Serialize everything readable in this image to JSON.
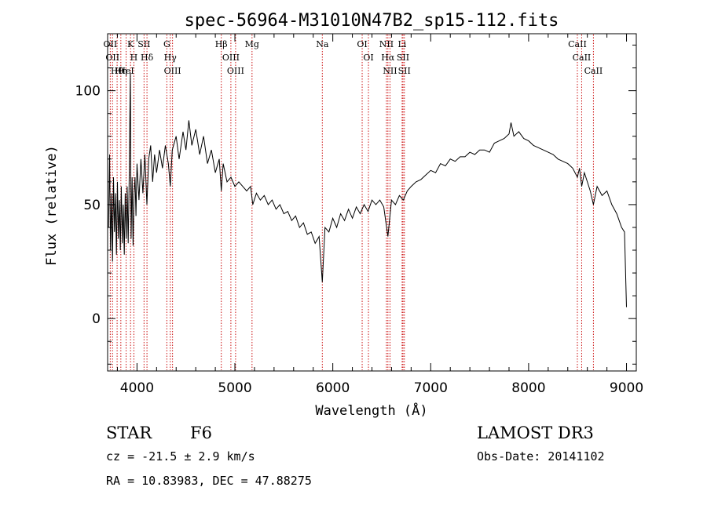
{
  "chart_data": {
    "type": "line",
    "title": "spec-56964-M31010N47B2_sp15-112.fits",
    "xlabel": "Wavelength (Å)",
    "ylabel": "Flux (relative)",
    "xlim": [
      3700,
      9100
    ],
    "ylim": [
      -23,
      125
    ],
    "x_ticks": [
      4000,
      5000,
      6000,
      7000,
      8000,
      9000
    ],
    "x_tick_labels": [
      "4000",
      "5000",
      "6000",
      "7000",
      "8000",
      "9000"
    ],
    "y_ticks": [
      0,
      50,
      100
    ],
    "y_tick_labels": [
      "0",
      "50",
      "100"
    ],
    "series": [
      {
        "name": "flux",
        "points": [
          [
            3710,
            40
          ],
          [
            3720,
            72
          ],
          [
            3730,
            30
          ],
          [
            3740,
            55
          ],
          [
            3750,
            25
          ],
          [
            3760,
            62
          ],
          [
            3770,
            38
          ],
          [
            3780,
            55
          ],
          [
            3790,
            28
          ],
          [
            3800,
            60
          ],
          [
            3810,
            35
          ],
          [
            3820,
            52
          ],
          [
            3830,
            30
          ],
          [
            3840,
            58
          ],
          [
            3850,
            33
          ],
          [
            3860,
            50
          ],
          [
            3870,
            28
          ],
          [
            3880,
            55
          ],
          [
            3890,
            35
          ],
          [
            3900,
            58
          ],
          [
            3910,
            33
          ],
          [
            3920,
            60
          ],
          [
            3932,
            108
          ],
          [
            3940,
            35
          ],
          [
            3950,
            62
          ],
          [
            3960,
            32
          ],
          [
            3970,
            55
          ],
          [
            3980,
            62
          ],
          [
            3990,
            45
          ],
          [
            4000,
            68
          ],
          [
            4020,
            52
          ],
          [
            4040,
            70
          ],
          [
            4060,
            55
          ],
          [
            4080,
            72
          ],
          [
            4101,
            50
          ],
          [
            4120,
            70
          ],
          [
            4140,
            76
          ],
          [
            4160,
            60
          ],
          [
            4180,
            72
          ],
          [
            4200,
            64
          ],
          [
            4230,
            74
          ],
          [
            4260,
            66
          ],
          [
            4290,
            76
          ],
          [
            4320,
            68
          ],
          [
            4340,
            58
          ],
          [
            4360,
            74
          ],
          [
            4400,
            80
          ],
          [
            4430,
            70
          ],
          [
            4470,
            82
          ],
          [
            4500,
            74
          ],
          [
            4530,
            87
          ],
          [
            4560,
            76
          ],
          [
            4600,
            83
          ],
          [
            4640,
            72
          ],
          [
            4680,
            80
          ],
          [
            4720,
            68
          ],
          [
            4760,
            74
          ],
          [
            4800,
            64
          ],
          [
            4840,
            70
          ],
          [
            4861,
            56
          ],
          [
            4880,
            68
          ],
          [
            4920,
            60
          ],
          [
            4960,
            62
          ],
          [
            5000,
            58
          ],
          [
            5040,
            60
          ],
          [
            5080,
            58
          ],
          [
            5120,
            56
          ],
          [
            5160,
            58
          ],
          [
            5183,
            50
          ],
          [
            5220,
            55
          ],
          [
            5260,
            52
          ],
          [
            5300,
            54
          ],
          [
            5340,
            50
          ],
          [
            5380,
            52
          ],
          [
            5420,
            48
          ],
          [
            5460,
            50
          ],
          [
            5500,
            46
          ],
          [
            5540,
            47
          ],
          [
            5580,
            43
          ],
          [
            5620,
            45
          ],
          [
            5660,
            40
          ],
          [
            5700,
            42
          ],
          [
            5740,
            37
          ],
          [
            5780,
            38
          ],
          [
            5820,
            33
          ],
          [
            5860,
            36
          ],
          [
            5893,
            16
          ],
          [
            5920,
            40
          ],
          [
            5960,
            38
          ],
          [
            6000,
            44
          ],
          [
            6040,
            40
          ],
          [
            6080,
            46
          ],
          [
            6120,
            43
          ],
          [
            6160,
            48
          ],
          [
            6200,
            44
          ],
          [
            6240,
            49
          ],
          [
            6280,
            46
          ],
          [
            6320,
            50
          ],
          [
            6360,
            47
          ],
          [
            6400,
            52
          ],
          [
            6440,
            50
          ],
          [
            6480,
            52
          ],
          [
            6520,
            49
          ],
          [
            6563,
            36
          ],
          [
            6600,
            52
          ],
          [
            6640,
            50
          ],
          [
            6680,
            54
          ],
          [
            6720,
            52
          ],
          [
            6760,
            56
          ],
          [
            6800,
            58
          ],
          [
            6850,
            60
          ],
          [
            6900,
            61
          ],
          [
            6950,
            63
          ],
          [
            7000,
            65
          ],
          [
            7050,
            64
          ],
          [
            7100,
            68
          ],
          [
            7150,
            67
          ],
          [
            7200,
            70
          ],
          [
            7250,
            69
          ],
          [
            7300,
            71
          ],
          [
            7350,
            71
          ],
          [
            7400,
            73
          ],
          [
            7450,
            72
          ],
          [
            7500,
            74
          ],
          [
            7550,
            74
          ],
          [
            7600,
            73
          ],
          [
            7650,
            77
          ],
          [
            7700,
            78
          ],
          [
            7750,
            79
          ],
          [
            7800,
            81
          ],
          [
            7820,
            86
          ],
          [
            7850,
            80
          ],
          [
            7900,
            82
          ],
          [
            7950,
            79
          ],
          [
            8000,
            78
          ],
          [
            8050,
            76
          ],
          [
            8100,
            75
          ],
          [
            8150,
            74
          ],
          [
            8200,
            73
          ],
          [
            8250,
            72
          ],
          [
            8300,
            70
          ],
          [
            8350,
            69
          ],
          [
            8400,
            68
          ],
          [
            8450,
            66
          ],
          [
            8498,
            62
          ],
          [
            8520,
            66
          ],
          [
            8542,
            58
          ],
          [
            8570,
            64
          ],
          [
            8600,
            60
          ],
          [
            8630,
            56
          ],
          [
            8662,
            50
          ],
          [
            8700,
            58
          ],
          [
            8750,
            54
          ],
          [
            8800,
            56
          ],
          [
            8850,
            50
          ],
          [
            8900,
            46
          ],
          [
            8950,
            40
          ],
          [
            8980,
            38
          ],
          [
            9000,
            5
          ]
        ]
      }
    ],
    "lines": [
      {
        "x": 3727,
        "label": "OII"
      },
      {
        "x": 3750,
        "label": "OII"
      },
      {
        "x": 3797,
        "label": "Hθ"
      },
      {
        "x": 3835,
        "label": "Hη"
      },
      {
        "x": 3889,
        "label": "HeI"
      },
      {
        "x": 3934,
        "label": "K"
      },
      {
        "x": 3968,
        "label": "H"
      },
      {
        "x": 4072,
        "label": "SII"
      },
      {
        "x": 4102,
        "label": "Hδ"
      },
      {
        "x": 4305,
        "label": "G"
      },
      {
        "x": 4340,
        "label": "Hγ"
      },
      {
        "x": 4363,
        "label": "OIII"
      },
      {
        "x": 4861,
        "label": "Hβ"
      },
      {
        "x": 4959,
        "label": "OIII"
      },
      {
        "x": 5007,
        "label": "OIII"
      },
      {
        "x": 5175,
        "label": "Mg"
      },
      {
        "x": 5893,
        "label": "Na"
      },
      {
        "x": 6300,
        "label": "OI"
      },
      {
        "x": 6364,
        "label": "OI"
      },
      {
        "x": 6548,
        "label": "NII"
      },
      {
        "x": 6563,
        "label": "Hα"
      },
      {
        "x": 6584,
        "label": "NII"
      },
      {
        "x": 6708,
        "label": "Li"
      },
      {
        "x": 6717,
        "label": "SII"
      },
      {
        "x": 6731,
        "label": "SII"
      },
      {
        "x": 8498,
        "label": "CaII"
      },
      {
        "x": 8542,
        "label": "CaII"
      },
      {
        "x": 8662,
        "label": "CaII"
      }
    ]
  },
  "info": {
    "class_label": "STAR",
    "subclass": "F6",
    "cz": "cz = -21.5 ± 2.9 km/s",
    "coords": "RA =  10.83983, DEC =  47.88275",
    "survey": "LAMOST DR3",
    "obs_date": "Obs-Date: 20141102"
  }
}
